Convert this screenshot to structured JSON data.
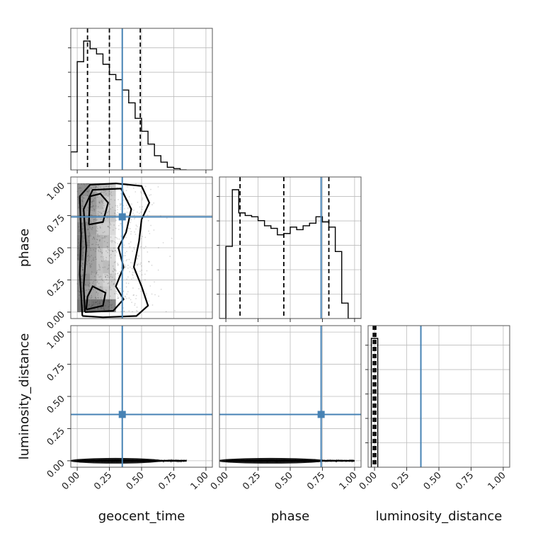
{
  "chart_data": {
    "type": "corner",
    "parameters": [
      "geocent_time",
      "phase",
      "luminosity_distance"
    ],
    "ticks": [
      "0.00",
      "0.25",
      "0.50",
      "0.75",
      "1.00"
    ],
    "tick_values": [
      0,
      0.25,
      0.5,
      0.75,
      1.0
    ],
    "range": [
      -0.05,
      1.05
    ],
    "grid": true,
    "truth_color": "#4682b4",
    "truths": {
      "geocent_time": 0.35,
      "phase": 0.74,
      "luminosity_distance": 0.36
    },
    "histograms": {
      "geocent_time": {
        "bin_edges": [
          -0.05,
          0.0,
          0.05,
          0.1,
          0.15,
          0.2,
          0.25,
          0.3,
          0.35,
          0.4,
          0.45,
          0.5,
          0.55,
          0.6,
          0.65,
          0.7,
          0.75,
          0.8,
          0.85
        ],
        "heights": [
          0.14,
          0.84,
          1.0,
          0.94,
          0.9,
          0.82,
          0.74,
          0.7,
          0.62,
          0.52,
          0.4,
          0.3,
          0.2,
          0.11,
          0.06,
          0.02,
          0.01,
          0.0
        ],
        "quantiles": [
          0.08,
          0.25,
          0.49
        ]
      },
      "phase": {
        "bin_edges": [
          -0.05,
          0.0,
          0.05,
          0.1,
          0.15,
          0.2,
          0.25,
          0.3,
          0.35,
          0.4,
          0.45,
          0.5,
          0.55,
          0.6,
          0.65,
          0.7,
          0.75,
          0.8,
          0.85,
          0.9,
          0.95,
          1.0,
          1.05
        ],
        "heights": [
          0.0,
          0.56,
          1.0,
          0.82,
          0.8,
          0.79,
          0.76,
          0.72,
          0.7,
          0.65,
          0.66,
          0.71,
          0.69,
          0.72,
          0.74,
          0.79,
          0.75,
          0.71,
          0.52,
          0.12,
          0.0,
          0.0
        ],
        "quantiles": [
          0.11,
          0.45,
          0.8
        ]
      },
      "luminosity_distance": {
        "bin_edges": [
          -0.025,
          0.0,
          0.025
        ],
        "heights": [
          1.0,
          1.0
        ],
        "quantiles": [
          -0.01,
          0.0,
          0.01
        ]
      }
    },
    "scatter_2d": {
      "phase_vs_geocent_time": {
        "x_extent": [
          0.0,
          0.9
        ],
        "y_extent": [
          -0.05,
          1.05
        ]
      },
      "luminosity_distance_vs_geocent_time": {
        "x_extent": [
          0.0,
          0.85
        ],
        "y_extent": [
          -0.01,
          0.01
        ]
      },
      "luminosity_distance_vs_phase": {
        "x_extent": [
          0.0,
          1.0
        ],
        "y_extent": [
          -0.01,
          0.01
        ]
      }
    }
  }
}
